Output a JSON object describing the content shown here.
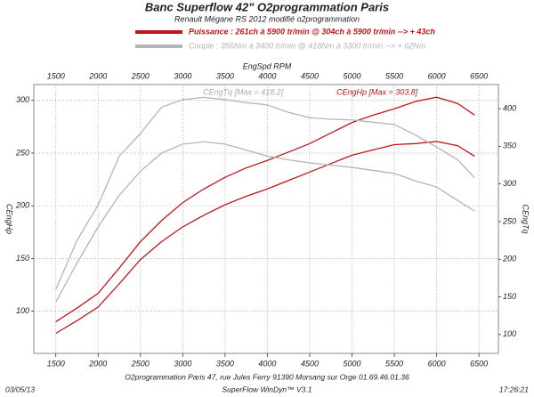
{
  "chart_data": {
    "type": "line",
    "title": "Banc Superflow 42\" O2programmation Paris",
    "subtitle": "Renault Mégane RS 2012 modifié o2programmation",
    "legend": [
      {
        "label": "Puissance : 261ch à 5900 tr/min @ 304ch à 5900 tr/min --> + 43ch",
        "color": "#c0141c"
      },
      {
        "label": "Couple : 356Nm à 3400 tr/min @ 418Nm à 3300 tr/min --> + 62Nm",
        "color": "#b4b4b4"
      }
    ],
    "x_label": "EngSpd RPM",
    "y_label": "CEngHp",
    "y2_label": "CEngTq",
    "annotations": [
      "CEngTq [Max = 418.2]",
      "CEngHp [Max = 303.8]"
    ],
    "footer": [
      "O2programmation Paris 47, rue Jules Ferry 91390 Morsang sur Orge 01.69.46.01.36",
      "SuperFlow WinDyn™ V3.1"
    ],
    "date": "03/05/13",
    "time": "17:26:21",
    "x": [
      1500,
      1750,
      2000,
      2250,
      2500,
      2750,
      3000,
      3250,
      3500,
      3750,
      4000,
      4250,
      4500,
      4750,
      5000,
      5250,
      5500,
      5750,
      6000,
      6250,
      6450
    ],
    "series": [
      {
        "color": "#c0141c",
        "axis": "y",
        "values": [
          90,
          103,
          117,
          141,
          166,
          186,
          203,
          216,
          227,
          236,
          243,
          251,
          259,
          269,
          279,
          286,
          292,
          299,
          303,
          297,
          286
        ]
      },
      {
        "color": "#c0141c",
        "axis": "y",
        "values": [
          79,
          91,
          104,
          126,
          149,
          166,
          180,
          191,
          201,
          209,
          216,
          224,
          232,
          240,
          248,
          253,
          258,
          259,
          261,
          257,
          247
        ]
      },
      {
        "color": "#b4b4b4",
        "axis": "y2",
        "values": [
          160,
          225,
          272,
          337,
          367,
          402,
          412,
          415,
          412,
          408,
          405,
          395,
          388,
          386,
          385,
          382,
          379,
          365,
          349,
          332,
          308
        ]
      },
      {
        "color": "#b4b4b4",
        "axis": "y2",
        "values": [
          143,
          195,
          243,
          285,
          317,
          341,
          353,
          356,
          353,
          345,
          337,
          332,
          328,
          325,
          322,
          318,
          314,
          304,
          296,
          278,
          264
        ]
      }
    ],
    "xlim": [
      1240,
      6730
    ],
    "xticks": [
      1500,
      2000,
      2500,
      3000,
      3500,
      4000,
      4500,
      5000,
      5500,
      6000,
      6500
    ],
    "ylim": [
      60,
      315
    ],
    "yticks": [
      100,
      150,
      200,
      250,
      300
    ],
    "y2lim": [
      75,
      432
    ],
    "y2ticks": [
      100,
      150,
      200,
      250,
      300,
      350,
      400
    ],
    "grid": true
  }
}
